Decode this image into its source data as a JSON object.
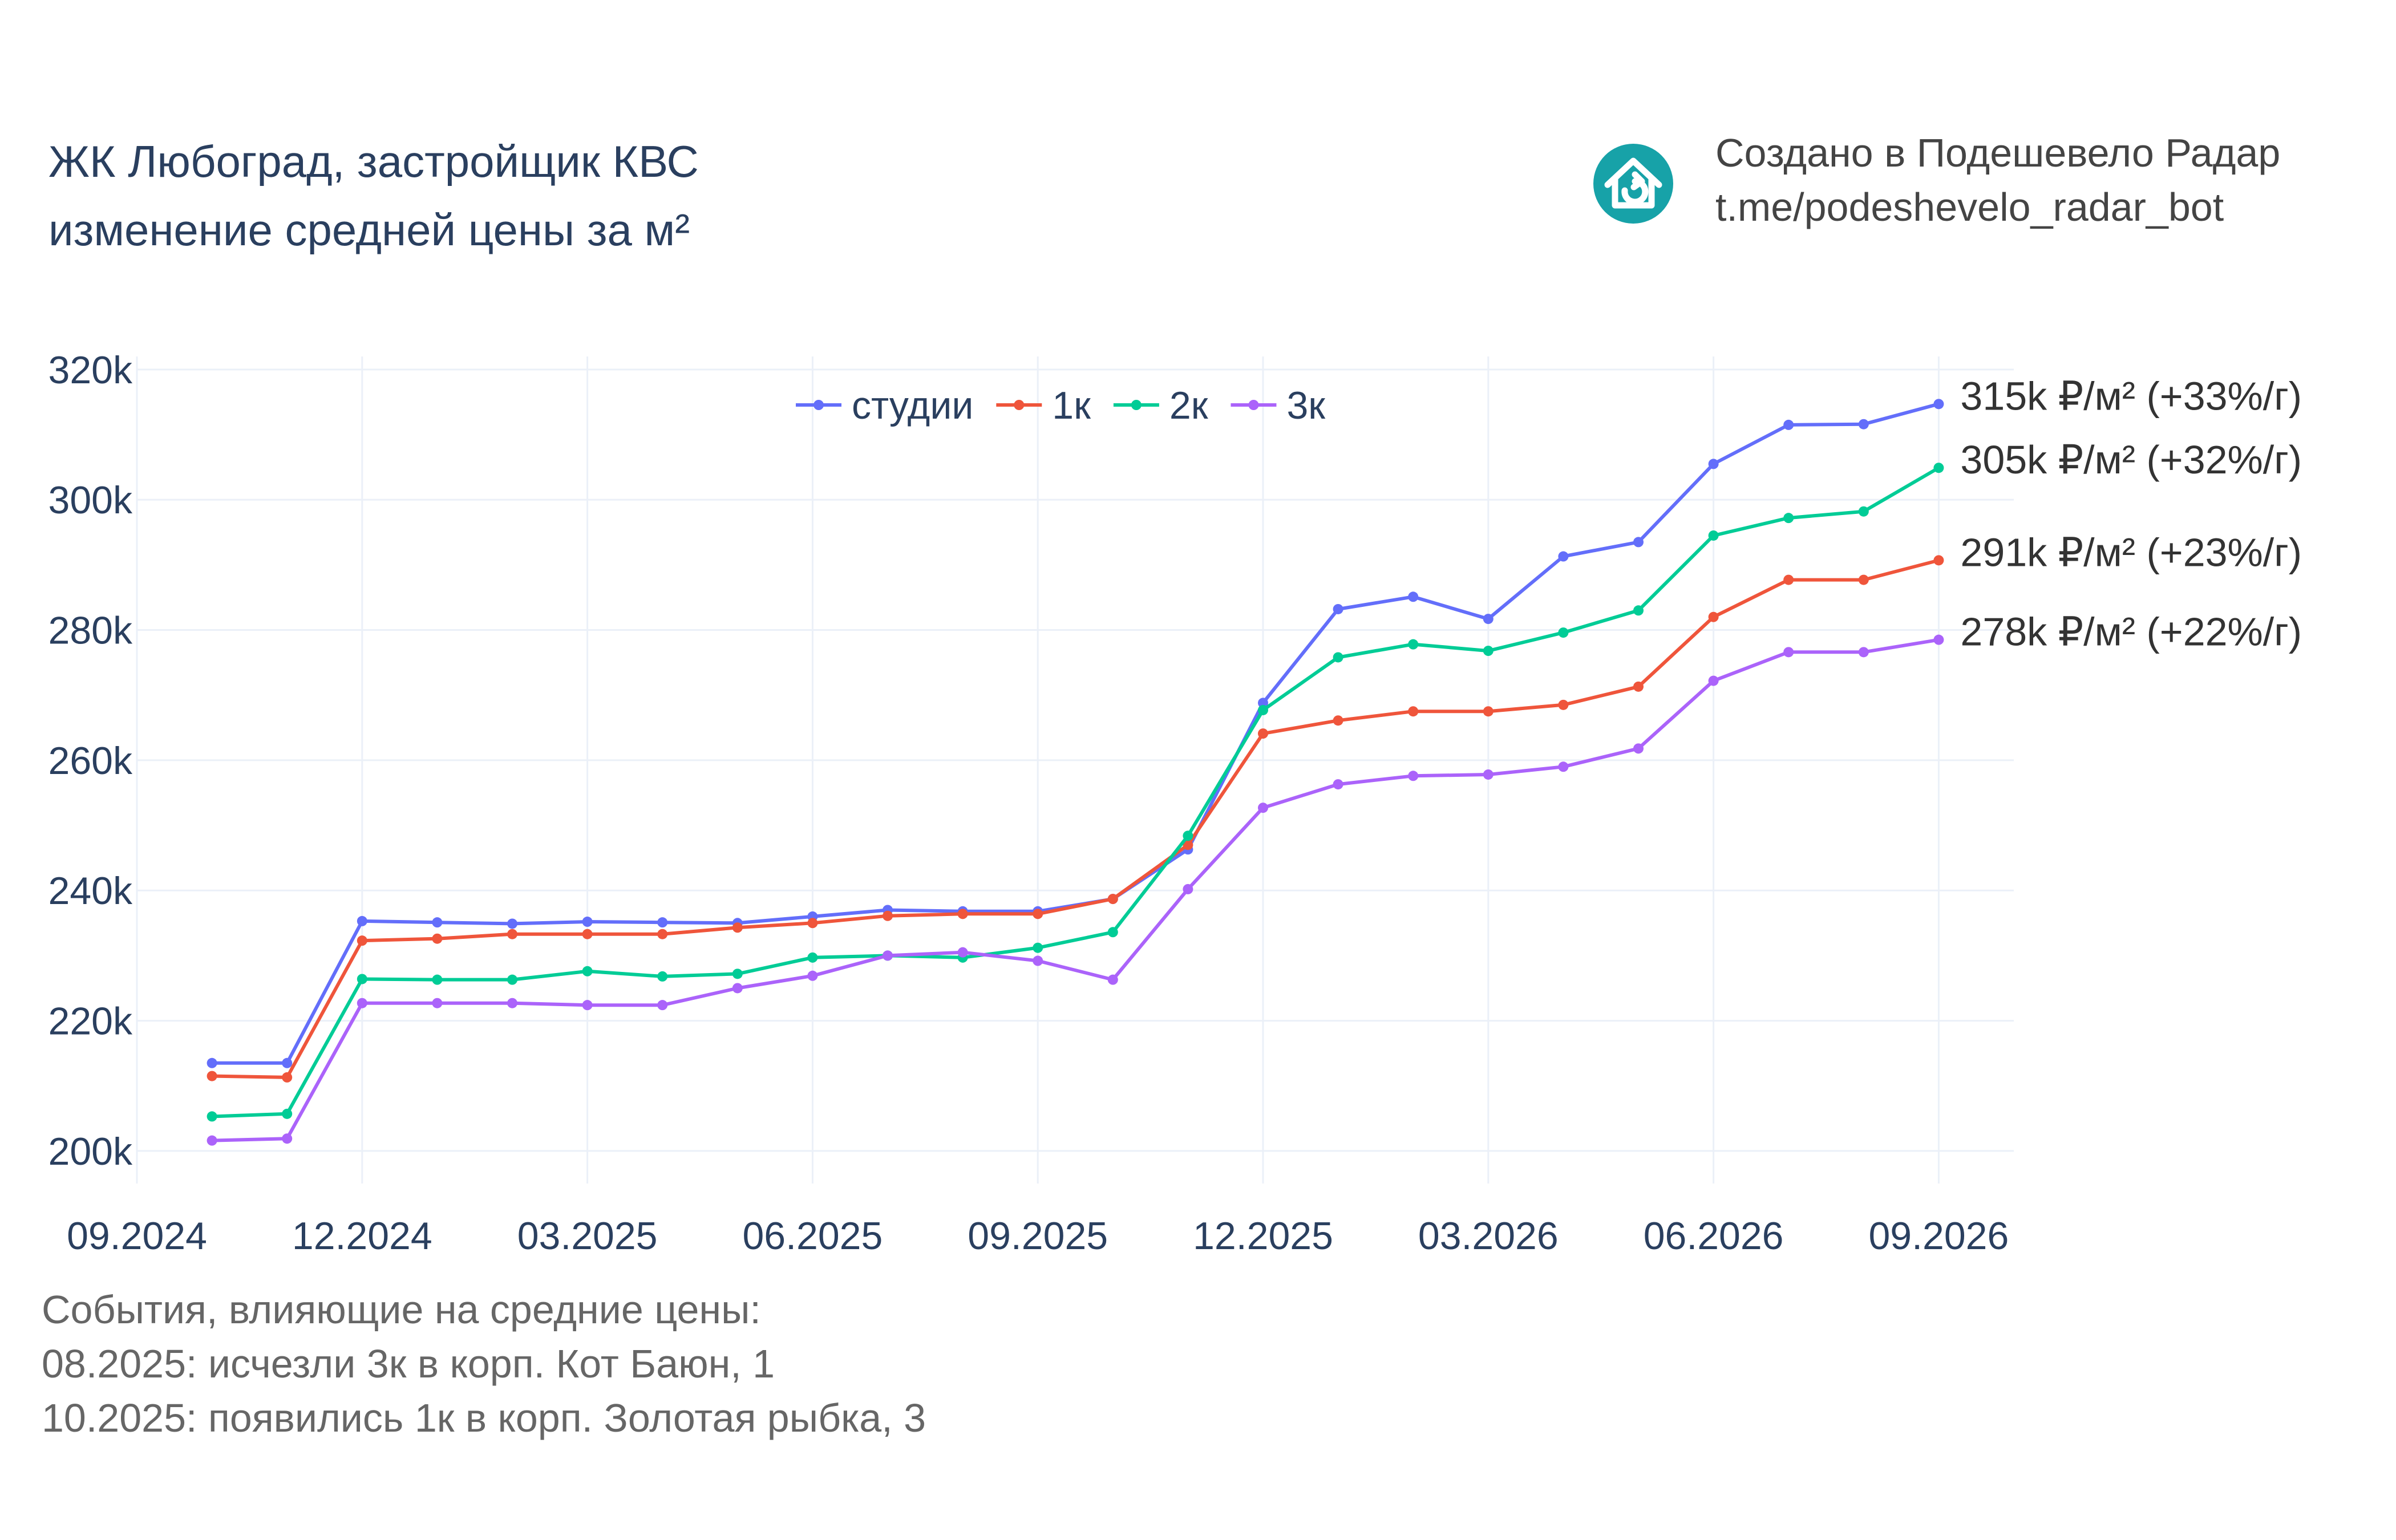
{
  "header": {
    "title_line1": "ЖК Любоград, застройщик КВС",
    "title_line2": "изменение средней цены за м²"
  },
  "brand": {
    "line1": "Создано в Подешевело Радар",
    "line2": "t.me/podeshevelo_radar_bot",
    "icon": "house-refresh-icon",
    "icon_color": "#17a2a8"
  },
  "events": {
    "heading": "События, влияющие на средние цены:",
    "items": [
      "08.2025: исчезли 3к в корп. Кот Баюн, 1",
      "10.2025: появились 1к в корп. Золотая рыбка, 3"
    ]
  },
  "chart_data": {
    "type": "line",
    "x": [
      "10.2024",
      "11.2024",
      "12.2024",
      "01.2025",
      "02.2025",
      "03.2025",
      "04.2025",
      "05.2025",
      "06.2025",
      "07.2025",
      "08.2025",
      "09.2025",
      "10.2025",
      "11.2025",
      "12.2025",
      "01.2026",
      "02.2026",
      "03.2026",
      "04.2026",
      "05.2026",
      "06.2026",
      "07.2026",
      "08.2026",
      "09.2026"
    ],
    "x_ticks": [
      "09.2024",
      "12.2024",
      "03.2025",
      "06.2025",
      "09.2025",
      "12.2025",
      "03.2026",
      "06.2026",
      "09.2026"
    ],
    "x_range": [
      "09.2024",
      "10.2026"
    ],
    "ylim": [
      195000,
      322000
    ],
    "y_ticks": [
      200000,
      220000,
      240000,
      260000,
      280000,
      300000,
      320000
    ],
    "y_tick_labels": [
      "200k",
      "220k",
      "240k",
      "260k",
      "280k",
      "300k",
      "320k"
    ],
    "grid": true,
    "legend_position": "top-center",
    "series": [
      {
        "name": "студии",
        "color": "#636efa",
        "values": [
          213500,
          213500,
          235300,
          235100,
          234900,
          235200,
          235100,
          235000,
          236000,
          237000,
          236800,
          236800,
          238700,
          246300,
          268800,
          283200,
          285100,
          281700,
          291300,
          293500,
          305500,
          311500,
          311600,
          314700
        ],
        "end_label": "315k ₽/м² (+33%/г)"
      },
      {
        "name": "1к",
        "color": "#ef553b",
        "values": [
          211500,
          211300,
          232300,
          232600,
          233300,
          233300,
          233300,
          234300,
          235000,
          236100,
          236400,
          236400,
          238700,
          247000,
          264100,
          266100,
          267500,
          267500,
          268500,
          271300,
          282000,
          287700,
          287700,
          290700
        ],
        "end_label": "291k ₽/м² (+23%/г)"
      },
      {
        "name": "2к",
        "color": "#00cc96",
        "values": [
          205300,
          205700,
          226400,
          226300,
          226300,
          227600,
          226800,
          227200,
          229700,
          230000,
          229700,
          231200,
          233600,
          248400,
          267700,
          275800,
          277800,
          276800,
          279600,
          283000,
          294500,
          297200,
          298200,
          304900
        ],
        "end_label": "305k ₽/м² (+32%/г)"
      },
      {
        "name": "3к",
        "color": "#ab63fa",
        "values": [
          201600,
          201900,
          222700,
          222700,
          222700,
          222400,
          222400,
          225000,
          226900,
          230000,
          230500,
          229200,
          226300,
          240200,
          252700,
          256300,
          257600,
          257800,
          259000,
          261800,
          272200,
          276600,
          276600,
          278500
        ],
        "end_label": "278k ₽/м² (+22%/г)"
      }
    ]
  }
}
